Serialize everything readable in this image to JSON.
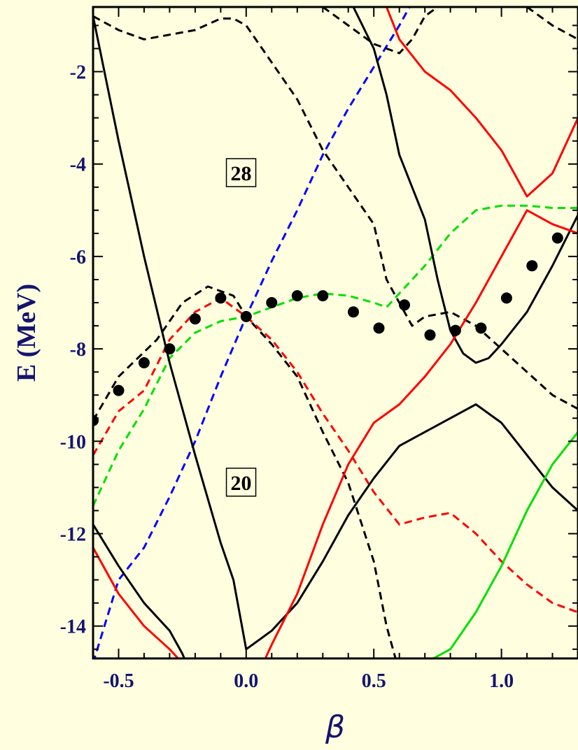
{
  "chart_data": {
    "type": "line",
    "xlabel": "β",
    "ylabel": "E (MeV)",
    "xlim": [
      -0.6,
      1.3
    ],
    "ylim": [
      -14.7,
      -0.6
    ],
    "xticks": [
      -0.5,
      0.0,
      0.5,
      1.0
    ],
    "xtick_labels": [
      "-0.5",
      "0.0",
      "0.5",
      "1.0"
    ],
    "yticks": [
      -2,
      -4,
      -6,
      -8,
      -10,
      -12,
      -14
    ],
    "ytick_labels": [
      "-2",
      "-4",
      "-6",
      "-8",
      "-10",
      "-12",
      "-14"
    ],
    "annotations": [
      {
        "text": "28",
        "x": -0.02,
        "y": -4.2
      },
      {
        "text": "20",
        "x": -0.02,
        "y": -10.9
      }
    ],
    "series": [
      {
        "color": "#000000",
        "dash": true,
        "points": [
          [
            -0.6,
            -9.55
          ],
          [
            -0.5,
            -8.6
          ],
          [
            -0.35,
            -7.8
          ],
          [
            -0.25,
            -7.0
          ],
          [
            -0.15,
            -6.65
          ],
          [
            -0.05,
            -6.85
          ],
          [
            0.0,
            -7.3
          ],
          [
            0.1,
            -7.9
          ],
          [
            0.2,
            -8.6
          ],
          [
            0.3,
            -9.8
          ],
          [
            0.4,
            -10.9
          ],
          [
            0.5,
            -12.6
          ],
          [
            0.55,
            -14.0
          ],
          [
            0.6,
            -15.0
          ]
        ]
      },
      {
        "color": "#ff0000",
        "dash": true,
        "points": [
          [
            -0.6,
            -10.3
          ],
          [
            -0.5,
            -9.35
          ],
          [
            -0.4,
            -8.9
          ],
          [
            -0.3,
            -7.8
          ],
          [
            -0.2,
            -7.2
          ],
          [
            -0.1,
            -6.9
          ],
          [
            0.0,
            -7.3
          ],
          [
            0.1,
            -7.8
          ],
          [
            0.2,
            -8.5
          ],
          [
            0.3,
            -9.4
          ],
          [
            0.4,
            -10.2
          ],
          [
            0.5,
            -11.1
          ],
          [
            0.6,
            -11.8
          ],
          [
            0.7,
            -11.65
          ],
          [
            0.8,
            -11.55
          ],
          [
            0.9,
            -12.0
          ],
          [
            1.0,
            -12.6
          ],
          [
            1.1,
            -13.1
          ],
          [
            1.2,
            -13.5
          ],
          [
            1.3,
            -13.7
          ]
        ]
      },
      {
        "color": "#00e000",
        "dash": true,
        "points": [
          [
            -0.6,
            -11.4
          ],
          [
            -0.5,
            -10.2
          ],
          [
            -0.4,
            -9.3
          ],
          [
            -0.3,
            -8.2
          ],
          [
            -0.2,
            -7.65
          ],
          [
            -0.1,
            -7.4
          ],
          [
            0.0,
            -7.3
          ],
          [
            0.1,
            -7.1
          ],
          [
            0.2,
            -6.9
          ],
          [
            0.3,
            -6.8
          ],
          [
            0.4,
            -6.85
          ],
          [
            0.5,
            -7.0
          ],
          [
            0.55,
            -7.1
          ],
          [
            0.6,
            -6.8
          ],
          [
            0.7,
            -6.2
          ],
          [
            0.8,
            -5.5
          ],
          [
            0.9,
            -5.0
          ],
          [
            1.0,
            -4.9
          ],
          [
            1.1,
            -4.9
          ],
          [
            1.2,
            -4.95
          ],
          [
            1.3,
            -4.95
          ]
        ]
      },
      {
        "color": "#0000ff",
        "dash": true,
        "points": [
          [
            -0.6,
            -14.8
          ],
          [
            -0.5,
            -13.0
          ],
          [
            -0.4,
            -12.3
          ],
          [
            -0.3,
            -11.2
          ],
          [
            -0.2,
            -10.0
          ],
          [
            -0.1,
            -8.6
          ],
          [
            0.0,
            -7.3
          ],
          [
            0.1,
            -6.1
          ],
          [
            0.2,
            -5.0
          ],
          [
            0.3,
            -3.8
          ],
          [
            0.4,
            -2.8
          ],
          [
            0.5,
            -1.9
          ],
          [
            0.6,
            -1.0
          ],
          [
            0.65,
            -0.5
          ]
        ]
      },
      {
        "color": "#000000",
        "dash": true,
        "points": [
          [
            -0.6,
            -0.8
          ],
          [
            -0.5,
            -1.1
          ],
          [
            -0.4,
            -1.3
          ],
          [
            -0.2,
            -1.1
          ],
          [
            -0.1,
            -0.85
          ],
          [
            -0.05,
            -0.85
          ],
          [
            0.0,
            -1.0
          ],
          [
            0.1,
            -1.8
          ],
          [
            0.2,
            -2.6
          ],
          [
            0.3,
            -3.7
          ],
          [
            0.4,
            -4.5
          ],
          [
            0.5,
            -5.3
          ],
          [
            0.55,
            -6.5
          ],
          [
            0.65,
            -7.5
          ],
          [
            0.7,
            -7.3
          ],
          [
            0.8,
            -7.2
          ],
          [
            0.9,
            -7.5
          ],
          [
            1.0,
            -8.0
          ],
          [
            1.1,
            -8.5
          ],
          [
            1.2,
            -9.0
          ],
          [
            1.3,
            -9.3
          ]
        ]
      },
      {
        "color": "#000000",
        "dash": true,
        "points": [
          [
            0.3,
            -0.6
          ],
          [
            0.4,
            -1.0
          ],
          [
            0.5,
            -1.4
          ],
          [
            0.6,
            -1.6
          ],
          [
            0.65,
            -1.3
          ],
          [
            0.7,
            -0.8
          ],
          [
            0.75,
            -0.6
          ]
        ]
      },
      {
        "color": "#000000",
        "dash": true,
        "points": [
          [
            1.1,
            -0.6
          ],
          [
            1.2,
            -1.0
          ],
          [
            1.3,
            -1.3
          ]
        ]
      },
      {
        "color": "#000000",
        "dash": false,
        "points": [
          [
            -0.6,
            -0.8
          ],
          [
            -0.5,
            -3.5
          ],
          [
            -0.4,
            -6.0
          ],
          [
            -0.3,
            -8.3
          ],
          [
            -0.2,
            -10.3
          ],
          [
            -0.1,
            -12.2
          ],
          [
            -0.05,
            -13.0
          ],
          [
            0.0,
            -14.5
          ],
          [
            0.05,
            -14.3
          ],
          [
            0.1,
            -14.1
          ],
          [
            0.2,
            -13.5
          ],
          [
            0.3,
            -12.6
          ],
          [
            0.4,
            -11.6
          ],
          [
            0.5,
            -10.8
          ],
          [
            0.6,
            -10.1
          ],
          [
            0.7,
            -9.8
          ],
          [
            0.8,
            -9.5
          ],
          [
            0.9,
            -9.2
          ],
          [
            1.0,
            -9.6
          ],
          [
            1.1,
            -10.3
          ],
          [
            1.2,
            -11.0
          ],
          [
            1.3,
            -11.5
          ]
        ]
      },
      {
        "color": "#000000",
        "dash": false,
        "points": [
          [
            0.42,
            -0.6
          ],
          [
            0.5,
            -1.5
          ],
          [
            0.55,
            -2.5
          ],
          [
            0.6,
            -3.8
          ],
          [
            0.7,
            -5.2
          ],
          [
            0.75,
            -6.5
          ],
          [
            0.8,
            -7.6
          ],
          [
            0.85,
            -8.1
          ],
          [
            0.9,
            -8.3
          ],
          [
            0.95,
            -8.2
          ],
          [
            1.0,
            -7.9
          ],
          [
            1.1,
            -7.2
          ],
          [
            1.2,
            -6.2
          ],
          [
            1.3,
            -5.1
          ]
        ]
      },
      {
        "color": "#000000",
        "dash": false,
        "points": [
          [
            -0.6,
            -11.8
          ],
          [
            -0.5,
            -12.7
          ],
          [
            -0.4,
            -13.5
          ],
          [
            -0.3,
            -14.1
          ],
          [
            -0.25,
            -14.6
          ],
          [
            -0.22,
            -15.0
          ]
        ]
      },
      {
        "color": "#ff0000",
        "dash": false,
        "points": [
          [
            -0.6,
            -12.3
          ],
          [
            -0.5,
            -13.3
          ],
          [
            -0.4,
            -14.0
          ],
          [
            -0.3,
            -14.5
          ],
          [
            -0.25,
            -14.8
          ]
        ]
      },
      {
        "color": "#ff0000",
        "dash": false,
        "points": [
          [
            0.05,
            -15.0
          ],
          [
            0.1,
            -14.4
          ],
          [
            0.2,
            -13.3
          ],
          [
            0.3,
            -11.8
          ],
          [
            0.4,
            -10.5
          ],
          [
            0.5,
            -9.6
          ],
          [
            0.6,
            -9.2
          ],
          [
            0.7,
            -8.6
          ],
          [
            0.8,
            -7.9
          ],
          [
            0.9,
            -7.0
          ],
          [
            1.0,
            -6.0
          ],
          [
            1.1,
            -5.0
          ],
          [
            1.2,
            -5.3
          ],
          [
            1.3,
            -5.5
          ]
        ]
      },
      {
        "color": "#ff0000",
        "dash": false,
        "points": [
          [
            0.55,
            -0.6
          ],
          [
            0.6,
            -1.3
          ],
          [
            0.7,
            -2.0
          ],
          [
            0.8,
            -2.4
          ],
          [
            0.9,
            -3.0
          ],
          [
            1.0,
            -3.7
          ],
          [
            1.1,
            -4.7
          ],
          [
            1.2,
            -4.2
          ],
          [
            1.3,
            -3.0
          ]
        ]
      },
      {
        "color": "#00e000",
        "dash": false,
        "points": [
          [
            0.7,
            -14.8
          ],
          [
            0.8,
            -14.5
          ],
          [
            0.9,
            -13.7
          ],
          [
            1.0,
            -12.7
          ],
          [
            1.1,
            -11.5
          ],
          [
            1.2,
            -10.5
          ],
          [
            1.3,
            -9.8
          ]
        ]
      }
    ],
    "markers": {
      "color": "#000000",
      "points": [
        [
          -0.6,
          -9.55
        ],
        [
          -0.5,
          -8.9
        ],
        [
          -0.4,
          -8.3
        ],
        [
          -0.3,
          -8.0
        ],
        [
          -0.2,
          -7.35
        ],
        [
          -0.1,
          -6.9
        ],
        [
          0.0,
          -7.3
        ],
        [
          0.1,
          -7.0
        ],
        [
          0.2,
          -6.85
        ],
        [
          0.3,
          -6.85
        ],
        [
          0.42,
          -7.2
        ],
        [
          0.52,
          -7.55
        ],
        [
          0.62,
          -7.05
        ],
        [
          0.72,
          -7.7
        ],
        [
          0.82,
          -7.6
        ],
        [
          0.92,
          -7.55
        ],
        [
          1.02,
          -6.9
        ],
        [
          1.12,
          -6.2
        ],
        [
          1.22,
          -5.6
        ]
      ]
    }
  }
}
